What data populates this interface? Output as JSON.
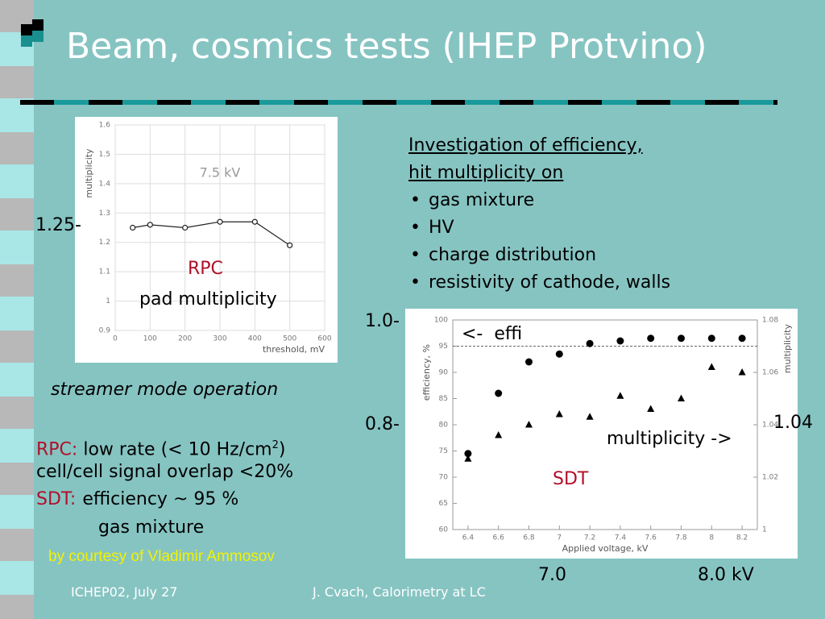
{
  "header": {
    "title": "Beam, cosmics tests (IHEP Protvino)"
  },
  "chart_data": [
    {
      "type": "line",
      "ylabel": "multiplicity",
      "xlabel": "threshold, mV",
      "annotation": "7.5 kV",
      "x": [
        50,
        100,
        200,
        300,
        400,
        500
      ],
      "values": [
        1.25,
        1.26,
        1.25,
        1.27,
        1.27,
        1.19
      ],
      "color": "#222222",
      "marker": "open-circle",
      "xlim": [
        0,
        600
      ],
      "xticks": [
        0,
        100,
        200,
        300,
        400,
        500,
        600
      ],
      "ylim": [
        0.9,
        1.6
      ],
      "yticks": [
        0.9,
        1,
        1.1,
        1.2,
        1.3,
        1.4,
        1.5,
        1.6
      ],
      "grid": true
    },
    {
      "type": "scatter",
      "ylabel": "efficiency, %",
      "y2label": "multiplicity",
      "xlabel": "Applied voltage, kV",
      "x": [
        6.4,
        6.6,
        6.8,
        7,
        7.2,
        7.4,
        7.6,
        7.8,
        8,
        8.2
      ],
      "series": [
        {
          "color": "#000000",
          "marker": "circle",
          "values": [
            74.5,
            86,
            92,
            93.5,
            95.5,
            96,
            96.5,
            96.5,
            96.5,
            96.5
          ]
        },
        {
          "color": "#000000",
          "marker": "triangle",
          "axis": "y2",
          "values": [
            1.027,
            1.036,
            1.04,
            1.044,
            1.043,
            1.051,
            1.046,
            1.05,
            1.062,
            1.06
          ]
        }
      ],
      "reference_line": 95,
      "xlim": [
        6.3,
        8.3
      ],
      "xticks": [
        6.4,
        6.6,
        6.8,
        7,
        7.2,
        7.4,
        7.6,
        7.8,
        8,
        8.2
      ],
      "ylim": [
        60,
        100
      ],
      "yticks": [
        60,
        65,
        70,
        75,
        80,
        85,
        90,
        95,
        100
      ],
      "y2lim": [
        1,
        1.08
      ],
      "y2ticks": [
        1,
        1.02,
        1.04,
        1.06,
        1.08
      ],
      "grid": false
    }
  ],
  "overlays": {
    "left_mark": "1.25-",
    "rpc": "RPC",
    "pad": "pad multiplicity",
    "mark_10": "1.0-",
    "mark_08": "0.8-",
    "mark_104": "1.04",
    "mark_70": "7.0",
    "mark_80": "8.0 kV",
    "effi": "<-  effi",
    "mult": "multiplicity ->",
    "sdt": "SDT"
  },
  "investigation": {
    "heading": [
      "Investigation of efficiency,",
      "hit multiplicity on"
    ],
    "bullets": [
      "gas mixture",
      "HV",
      "charge distribution",
      "resistivity of cathode,  walls"
    ]
  },
  "streamer": "streamer mode operation",
  "notes": {
    "rpc_label": "RPC:",
    "rpc_text": "low rate (< 10 Hz/cm",
    "rpc_sup": "2",
    "rpc_tail": ")",
    "overlap": "cell/cell signal overlap <20%",
    "sdt_label": "SDT:",
    "sdt_text": "efficiency ~ 95 %",
    "gas": "gas mixture"
  },
  "courtesy": "by courtesy of Vladimir Ammosov",
  "footer": {
    "left": "ICHEP02, July 27",
    "center": "J. Cvach, Calorimetry at LC"
  }
}
